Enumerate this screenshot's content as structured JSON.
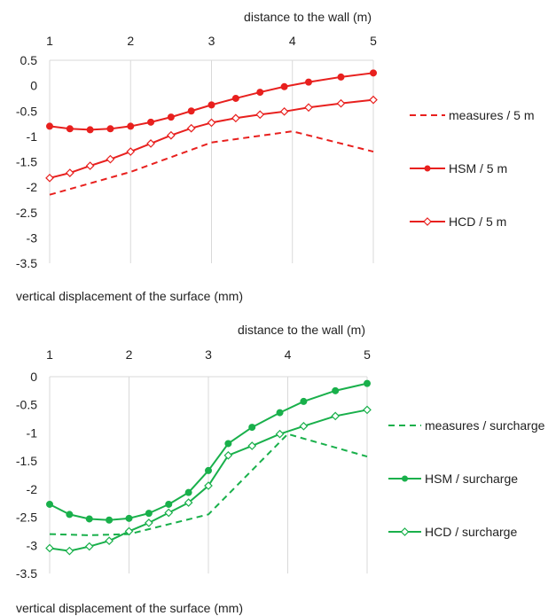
{
  "chart_data": [
    {
      "type": "line",
      "xlabel": "distance to the wall (m)",
      "ylabel": "vertical displacement of the surface (mm)",
      "xlim": [
        1,
        5
      ],
      "ylim": [
        -3.5,
        0.5
      ],
      "x_ticks": [
        "1",
        "2",
        "3",
        "4",
        "5"
      ],
      "y_ticks": [
        "0.5",
        "0",
        "-0.5",
        "-1",
        "-1.5",
        "-2",
        "-2.5",
        "-3",
        "-3.5"
      ],
      "x_axis_position": "top",
      "grid": "vertical",
      "legend_position": "right",
      "series": [
        {
          "name": "measures / 5 m",
          "style": "dashed",
          "marker": "none",
          "color": "#e8201e",
          "points": [
            [
              1,
              -2.15
            ],
            [
              2,
              -1.7
            ],
            [
              3,
              -1.12
            ],
            [
              4,
              -0.9
            ],
            [
              5,
              -1.3
            ]
          ]
        },
        {
          "name": "HSM / 5 m",
          "style": "solid",
          "marker": "filled-circle",
          "color": "#e8201e",
          "points": [
            [
              1,
              -0.8
            ],
            [
              1.25,
              -0.85
            ],
            [
              1.5,
              -0.87
            ],
            [
              1.75,
              -0.85
            ],
            [
              2,
              -0.8
            ],
            [
              2.25,
              -0.72
            ],
            [
              2.5,
              -0.62
            ],
            [
              2.75,
              -0.5
            ],
            [
              3,
              -0.38
            ],
            [
              3.3,
              -0.25
            ],
            [
              3.6,
              -0.13
            ],
            [
              3.9,
              -0.02
            ],
            [
              4.2,
              0.07
            ],
            [
              4.6,
              0.17
            ],
            [
              5,
              0.25
            ]
          ]
        },
        {
          "name": "HCD / 5 m",
          "style": "solid",
          "marker": "open-diamond",
          "color": "#e8201e",
          "points": [
            [
              1,
              -1.82
            ],
            [
              1.25,
              -1.72
            ],
            [
              1.5,
              -1.58
            ],
            [
              1.75,
              -1.45
            ],
            [
              2,
              -1.3
            ],
            [
              2.25,
              -1.14
            ],
            [
              2.5,
              -0.98
            ],
            [
              2.75,
              -0.84
            ],
            [
              3,
              -0.73
            ],
            [
              3.3,
              -0.64
            ],
            [
              3.6,
              -0.57
            ],
            [
              3.9,
              -0.51
            ],
            [
              4.2,
              -0.43
            ],
            [
              4.6,
              -0.35
            ],
            [
              5,
              -0.28
            ]
          ]
        }
      ]
    },
    {
      "type": "line",
      "xlabel": "distance to the wall (m)",
      "ylabel": "vertical displacement of the surface (mm)",
      "xlim": [
        1,
        5
      ],
      "ylim": [
        -3.5,
        0
      ],
      "x_ticks": [
        "1",
        "2",
        "3",
        "4",
        "5"
      ],
      "y_ticks": [
        "0",
        "-0.5",
        "-1",
        "-1.5",
        "-2",
        "-2.5",
        "-3",
        "-3.5"
      ],
      "x_axis_position": "top",
      "grid": "vertical",
      "legend_position": "right",
      "series": [
        {
          "name": "measures / surcharge",
          "style": "dashed",
          "marker": "none",
          "color": "#19b04b",
          "points": [
            [
              1,
              -2.8
            ],
            [
              1.5,
              -2.82
            ],
            [
              2,
              -2.8
            ],
            [
              3,
              -2.45
            ],
            [
              4,
              -1.02
            ],
            [
              5,
              -1.42
            ]
          ]
        },
        {
          "name": "HSM / surcharge",
          "style": "solid",
          "marker": "filled-circle",
          "color": "#19b04b",
          "points": [
            [
              1,
              -2.27
            ],
            [
              1.25,
              -2.45
            ],
            [
              1.5,
              -2.53
            ],
            [
              1.75,
              -2.55
            ],
            [
              2,
              -2.52
            ],
            [
              2.25,
              -2.43
            ],
            [
              2.5,
              -2.27
            ],
            [
              2.75,
              -2.06
            ],
            [
              3,
              -1.67
            ],
            [
              3.25,
              -1.19
            ],
            [
              3.55,
              -0.9
            ],
            [
              3.9,
              -0.64
            ],
            [
              4.2,
              -0.44
            ],
            [
              4.6,
              -0.25
            ],
            [
              5,
              -0.12
            ]
          ]
        },
        {
          "name": "HCD / surcharge",
          "style": "solid",
          "marker": "open-diamond",
          "color": "#19b04b",
          "points": [
            [
              1,
              -3.05
            ],
            [
              1.25,
              -3.1
            ],
            [
              1.5,
              -3.02
            ],
            [
              1.75,
              -2.92
            ],
            [
              2,
              -2.75
            ],
            [
              2.25,
              -2.6
            ],
            [
              2.5,
              -2.42
            ],
            [
              2.75,
              -2.24
            ],
            [
              3,
              -1.94
            ],
            [
              3.25,
              -1.4
            ],
            [
              3.55,
              -1.23
            ],
            [
              3.9,
              -1.02
            ],
            [
              4.2,
              -0.88
            ],
            [
              4.6,
              -0.7
            ],
            [
              5,
              -0.59
            ]
          ]
        }
      ]
    }
  ]
}
